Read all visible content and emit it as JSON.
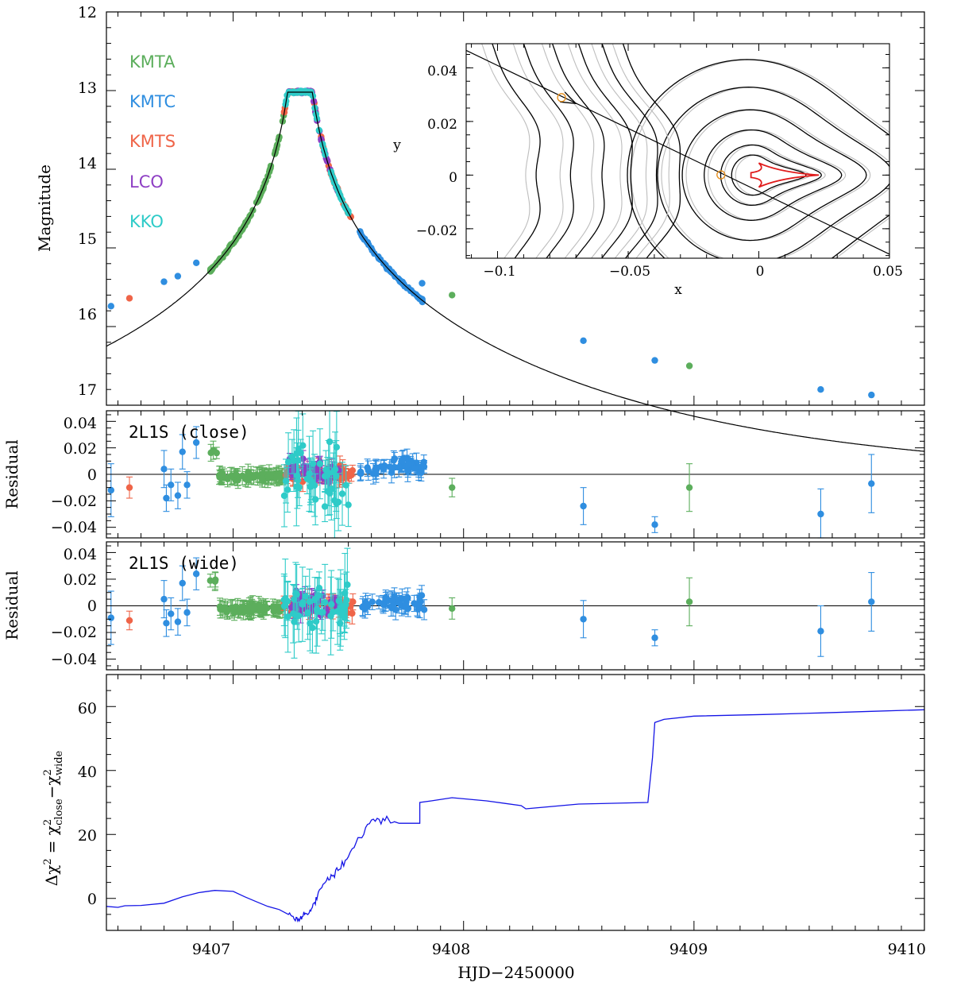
{
  "colors": {
    "KMTA": "#5cae5c",
    "KMTC": "#2f8ee0",
    "KMTS": "#ef6448",
    "LCO": "#8e3fc4",
    "KKO": "#2ecbc8",
    "model": "#000000",
    "dchi": "#1515e6",
    "caustic": "#e01b1b",
    "source": "#e69020",
    "gray_contour": "#bdbdbd"
  },
  "chart_data": [
    {
      "type": "scatter",
      "panel": "light-curve",
      "ylabel": "Magnitude",
      "xlim": [
        9406.45,
        9410.0
      ],
      "ylim": [
        12.0,
        17.0
      ],
      "y_inverted": true,
      "yticks": [
        12,
        13,
        14,
        15,
        16,
        17
      ],
      "legend": [
        "KMTA",
        "KMTC",
        "KMTS",
        "LCO",
        "KKO"
      ],
      "legend_position": "top-left",
      "model_curve": {
        "t0": 9407.29,
        "tE": 1.8,
        "u0": 0.0,
        "peak_mag": 13.02,
        "base_mag": 17.93
      },
      "series": [
        {
          "name": "KMTC",
          "x": [
            9406.47,
            9406.7,
            9406.76,
            9406.84,
            9407.82,
            9408.52,
            9408.83,
            9409.55,
            9409.77
          ],
          "y": [
            15.74,
            15.43,
            15.36,
            15.19,
            15.45,
            16.18,
            16.43,
            16.8,
            16.87
          ]
        },
        {
          "name": "KMTS",
          "x": [
            9406.55
          ],
          "y": [
            15.64
          ]
        },
        {
          "name": "KMTA",
          "x": [
            9407.95,
            9408.98
          ],
          "y": [
            15.6,
            16.5
          ]
        }
      ],
      "dense_ranges": [
        {
          "name": "KMTA",
          "x": [
            9406.9,
            9407.22
          ]
        },
        {
          "name": "KMTC",
          "x": [
            9407.55,
            9407.83
          ]
        },
        {
          "name": "KMTS",
          "x": [
            9407.22,
            9407.52
          ]
        },
        {
          "name": "LCO",
          "x": [
            9407.24,
            9407.46
          ]
        },
        {
          "name": "KKO",
          "x": [
            9407.22,
            9407.5
          ]
        }
      ]
    },
    {
      "type": "line",
      "panel": "inset-trajectory",
      "xlabel": "x",
      "ylabel": "y",
      "xlim": [
        -0.112,
        0.05
      ],
      "ylim": [
        -0.031,
        0.049
      ],
      "xticks": [
        -0.1,
        -0.05,
        0,
        0.05
      ],
      "xtick_labels": [
        "−0.1",
        "−0.05",
        "0",
        "0.05"
      ],
      "yticks": [
        -0.02,
        0,
        0.02,
        0.04
      ],
      "ytick_labels": [
        "−0.02",
        "0",
        "0.02",
        "0.04"
      ],
      "trajectory": {
        "x": [
          -0.112,
          0.05
        ],
        "y": [
          0.0465,
          -0.0295
        ]
      },
      "source_positions": [
        {
          "x": -0.0755,
          "y": 0.0289
        },
        {
          "x": -0.0145,
          "y": 0.0001
        }
      ],
      "caustic_tip_x": [
        -0.003,
        0.023
      ]
    },
    {
      "type": "scatter",
      "panel": "residual-close",
      "title": "2L1S (close)",
      "ylabel": "Residual",
      "ylim": [
        -0.048,
        0.048
      ],
      "yticks": [
        -0.04,
        -0.02,
        0,
        0.02,
        0.04
      ],
      "ytick_labels": [
        "−0.04",
        "−0.02",
        "0",
        "0.02",
        "0.04"
      ],
      "series": [
        {
          "name": "KMTC",
          "x": [
            9406.47,
            9406.7,
            9406.71,
            9406.73,
            9406.76,
            9406.78,
            9406.8,
            9406.84,
            9408.52,
            9408.83,
            9409.55,
            9409.77
          ],
          "y": [
            -0.012,
            0.004,
            -0.018,
            -0.008,
            -0.016,
            0.017,
            -0.008,
            0.024,
            -0.024,
            -0.038,
            -0.03,
            -0.007
          ],
          "err": [
            0.02,
            0.014,
            0.01,
            0.012,
            0.01,
            0.013,
            0.01,
            0.012,
            0.014,
            0.006,
            0.019,
            0.022
          ]
        },
        {
          "name": "KMTS",
          "x": [
            9406.55
          ],
          "y": [
            -0.01
          ],
          "err": [
            0.008
          ]
        },
        {
          "name": "KMTA",
          "x": [
            9407.95,
            9408.98
          ],
          "y": [
            -0.01,
            -0.01
          ],
          "err": [
            0.007,
            0.018
          ]
        }
      ]
    },
    {
      "type": "scatter",
      "panel": "residual-wide",
      "title": "2L1S (wide)",
      "ylabel": "Residual",
      "ylim": [
        -0.048,
        0.048
      ],
      "yticks": [
        -0.04,
        -0.02,
        0,
        0.02,
        0.04
      ],
      "ytick_labels": [
        "−0.04",
        "−0.02",
        "0",
        "0.02",
        "0.04"
      ],
      "series": [
        {
          "name": "KMTC",
          "x": [
            9406.47,
            9406.7,
            9406.71,
            9406.73,
            9406.76,
            9406.78,
            9406.8,
            9406.84,
            9408.52,
            9408.83,
            9409.55,
            9409.77
          ],
          "y": [
            -0.009,
            0.005,
            -0.013,
            -0.006,
            -0.012,
            0.017,
            -0.005,
            0.024,
            -0.01,
            -0.024,
            -0.019,
            0.003
          ],
          "err": [
            0.02,
            0.014,
            0.01,
            0.012,
            0.01,
            0.013,
            0.01,
            0.012,
            0.014,
            0.006,
            0.019,
            0.022
          ]
        },
        {
          "name": "KMTS",
          "x": [
            9406.55
          ],
          "y": [
            -0.011
          ],
          "err": [
            0.007
          ]
        },
        {
          "name": "KMTA",
          "x": [
            9407.95,
            9408.98
          ],
          "y": [
            -0.002,
            0.003
          ],
          "err": [
            0.008,
            0.018
          ]
        }
      ]
    },
    {
      "type": "line",
      "panel": "delta-chi2",
      "xlabel": "HJD−2450000",
      "ylabel": "Δχ² = χ²close −χ²wide",
      "xlim": [
        9406.45,
        9410.0
      ],
      "xticks": [
        9407,
        9408,
        9409,
        9410
      ],
      "ylim": [
        -10,
        70
      ],
      "yticks": [
        0,
        20,
        40,
        60
      ],
      "series": [
        {
          "name": "dchi2",
          "x": [
            9406.45,
            9406.5,
            9406.53,
            9406.6,
            9406.7,
            9406.78,
            9406.85,
            9406.92,
            9407.0,
            9407.05,
            9407.1,
            9407.15,
            9407.2,
            9407.24,
            9407.27,
            9407.29,
            9407.31,
            9407.33,
            9407.35,
            9407.37,
            9407.4,
            9407.43,
            9407.46,
            9407.5,
            9407.55,
            9407.6,
            9407.65,
            9407.7,
            9407.72,
            9407.75,
            9407.78,
            9407.81,
            9407.81,
            9407.86,
            9407.95,
            9408.1,
            9408.25,
            9408.27,
            9408.5,
            9408.8,
            9408.82,
            9408.83,
            9408.87,
            9409.0,
            9409.3,
            9409.55,
            9409.77,
            9410.0
          ],
          "y": [
            -2.5,
            -2.8,
            -2.3,
            -2.2,
            -1.5,
            0.5,
            1.8,
            2.5,
            2.2,
            0.5,
            -1.0,
            -2.5,
            -3.5,
            -5.0,
            -7.0,
            -6.5,
            -5.0,
            -4.5,
            -1.5,
            2.0,
            5.0,
            7.0,
            9.0,
            13.0,
            19.0,
            24.5,
            25.0,
            24.0,
            23.5,
            23.5,
            23.5,
            23.5,
            30.0,
            30.5,
            31.5,
            30.5,
            29.0,
            28.0,
            29.5,
            30.0,
            44.0,
            55.0,
            56.0,
            57.0,
            57.5,
            58.0,
            58.5,
            59.0
          ]
        }
      ]
    }
  ],
  "labels": {
    "xaxis": "HJD−2450000",
    "lc_ylabel": "Magnitude",
    "res_ylabel": "Residual",
    "inset_x": "x",
    "inset_y": "y",
    "dchi_prefix": "Δχ",
    "dchi_eq": "= χ",
    "dchi_close": "close",
    "dchi_minus": "−χ",
    "dchi_wide": "wide",
    "sq": "2",
    "title_close": "2L1S (close)",
    "title_wide": "2L1S (wide)",
    "lc_yticks": [
      "12",
      "13",
      "14",
      "15",
      "16",
      "17"
    ],
    "res_yticks": [
      "−0.04",
      "−0.02",
      "0",
      "0.02",
      "0.04"
    ],
    "dchi_yticks": [
      "0",
      "20",
      "40",
      "60"
    ],
    "xticks": [
      "9407",
      "9408",
      "9409",
      "9410"
    ],
    "inset_xticks": [
      "−0.1",
      "−0.05",
      "0",
      "0.05"
    ],
    "inset_yticks": [
      "−0.02",
      "0",
      "0.02",
      "0.04"
    ]
  }
}
